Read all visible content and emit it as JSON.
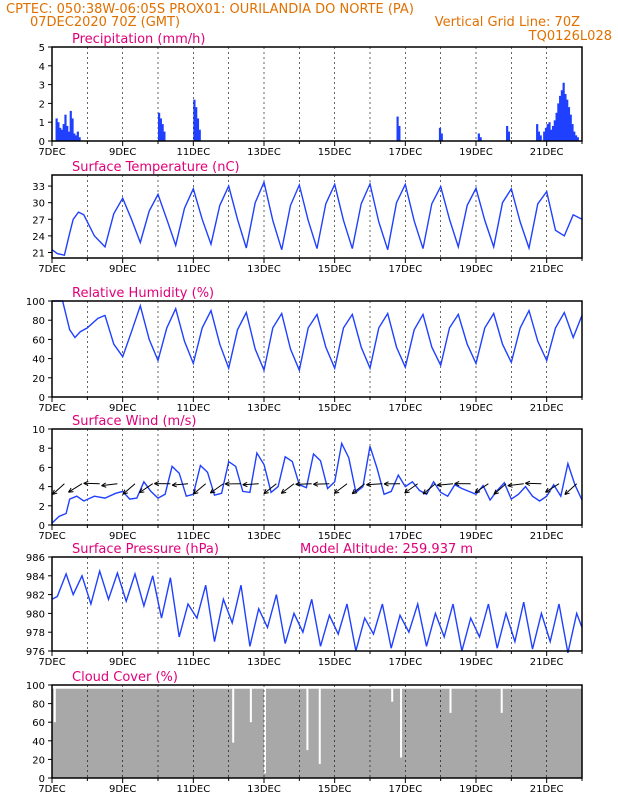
{
  "header": {
    "line1_left": "CPTEC:   050:38W-06:05S   PROX01: OURILANDIA DO NORTE (PA)",
    "line2_left": "07DEC2020 70Z (GMT)",
    "line2_right": "Vertical Grid Line: 70Z",
    "line3_right": "TQ0126L028"
  },
  "x_axis": {
    "tick_labels": [
      "7DEC",
      "9DEC",
      "11DEC",
      "13DEC",
      "15DEC",
      "17DEC",
      "19DEC",
      "21DEC"
    ],
    "year_label": "2020",
    "day_range": [
      0,
      15
    ]
  },
  "colors": {
    "header": "#e07000",
    "title": "#e0007a",
    "series": "#2040ff",
    "cloud": "#a8a8a8",
    "arrows": "#000000"
  },
  "chart_data": [
    {
      "type": "bar",
      "title": "Precipitation (mm/h)",
      "ylim": [
        0,
        5
      ],
      "yticks": [
        "0",
        "1",
        "2",
        "3",
        "4",
        "5"
      ],
      "x_days": [
        0.1,
        0.15,
        0.2,
        0.25,
        0.3,
        0.35,
        0.4,
        0.45,
        0.5,
        0.55,
        0.6,
        0.65,
        0.7,
        0.75,
        3.0,
        3.05,
        3.1,
        3.15,
        4.0,
        4.05,
        4.1,
        4.15,
        9.75,
        9.8,
        10.95,
        11.0,
        12.05,
        12.1,
        12.85,
        12.9,
        13.7,
        13.75,
        13.8,
        13.9,
        13.95,
        14.0,
        14.05,
        14.1,
        14.15,
        14.2,
        14.25,
        14.3,
        14.35,
        14.4,
        14.45,
        14.5,
        14.55,
        14.6,
        14.65,
        14.7,
        14.75,
        14.8,
        14.85
      ],
      "values": [
        1.2,
        1.0,
        0.7,
        0.6,
        0.9,
        1.4,
        0.8,
        0.5,
        1.6,
        1.2,
        0.4,
        0.3,
        0.5,
        0.2,
        1.5,
        1.2,
        0.9,
        0.5,
        2.2,
        1.8,
        1.2,
        0.6,
        1.3,
        0.8,
        0.7,
        0.4,
        0.4,
        0.2,
        0.8,
        0.5,
        0.9,
        0.5,
        0.3,
        0.5,
        0.7,
        0.9,
        1.0,
        0.6,
        0.8,
        1.1,
        1.5,
        2.0,
        2.4,
        2.7,
        3.1,
        2.5,
        2.2,
        1.8,
        1.4,
        0.9,
        0.5,
        0.3,
        0.2
      ]
    },
    {
      "type": "line",
      "title": "Surface Temperature (nC)",
      "ylim": [
        20,
        35
      ],
      "yticks": [
        "21",
        "24",
        "27",
        "30",
        "33"
      ],
      "x_days": [
        0,
        0.15,
        0.35,
        0.5,
        0.6,
        0.75,
        0.9,
        1.2,
        1.5,
        1.75,
        2.0,
        2.25,
        2.5,
        2.75,
        3.0,
        3.25,
        3.5,
        3.75,
        4.0,
        4.25,
        4.5,
        4.75,
        5.0,
        5.25,
        5.5,
        5.75,
        6.0,
        6.25,
        6.5,
        6.75,
        7.0,
        7.25,
        7.5,
        7.75,
        8.0,
        8.25,
        8.5,
        8.75,
        9.0,
        9.25,
        9.5,
        9.75,
        10.0,
        10.25,
        10.5,
        10.75,
        11.0,
        11.25,
        11.5,
        11.75,
        12.0,
        12.25,
        12.5,
        12.75,
        13.0,
        13.25,
        13.5,
        13.75,
        14.0,
        14.25,
        14.5,
        14.75,
        15.0
      ],
      "values": [
        21.5,
        20.8,
        20.5,
        24.5,
        27.0,
        28.3,
        27.8,
        24.0,
        22.0,
        28.0,
        30.8,
        27.0,
        22.8,
        28.5,
        31.5,
        27.0,
        22.3,
        29.0,
        32.5,
        27.0,
        22.5,
        29.5,
        33.0,
        27.0,
        21.8,
        30.0,
        33.7,
        26.8,
        21.5,
        29.5,
        33.2,
        26.8,
        21.7,
        29.8,
        33.3,
        26.8,
        21.7,
        29.8,
        33.4,
        26.5,
        21.5,
        30.0,
        33.3,
        26.7,
        21.7,
        29.8,
        32.9,
        27.0,
        22.0,
        29.5,
        32.6,
        26.8,
        22.0,
        30.0,
        32.5,
        26.5,
        21.8,
        29.8,
        32.0,
        25.0,
        24.0,
        27.8,
        27.0
      ]
    },
    {
      "type": "line",
      "title": "Relative Humidity (%)",
      "ylim": [
        0,
        100
      ],
      "yticks": [
        "0",
        "20",
        "40",
        "60",
        "80",
        "100"
      ],
      "x_days": [
        0,
        0.3,
        0.5,
        0.65,
        0.8,
        1.0,
        1.3,
        1.5,
        1.75,
        2.0,
        2.25,
        2.5,
        2.75,
        3.0,
        3.25,
        3.5,
        3.75,
        4.0,
        4.25,
        4.5,
        4.75,
        5.0,
        5.25,
        5.5,
        5.75,
        6.0,
        6.25,
        6.5,
        6.75,
        7.0,
        7.25,
        7.5,
        7.75,
        8.0,
        8.25,
        8.5,
        8.75,
        9.0,
        9.25,
        9.5,
        9.75,
        10.0,
        10.25,
        10.5,
        10.75,
        11.0,
        11.25,
        11.5,
        11.75,
        12.0,
        12.25,
        12.5,
        12.75,
        13.0,
        13.25,
        13.5,
        13.75,
        14.0,
        14.25,
        14.5,
        14.75,
        15.0
      ],
      "values": [
        100,
        100,
        70,
        62,
        68,
        72,
        82,
        85,
        55,
        42,
        68,
        95,
        60,
        38,
        72,
        92,
        58,
        35,
        72,
        90,
        55,
        30,
        70,
        88,
        50,
        28,
        72,
        87,
        50,
        28,
        72,
        86,
        52,
        30,
        72,
        86,
        52,
        30,
        72,
        87,
        52,
        31,
        70,
        86,
        52,
        33,
        72,
        86,
        55,
        35,
        72,
        87,
        55,
        36,
        72,
        90,
        58,
        38,
        72,
        88,
        62,
        85
      ]
    },
    {
      "type": "line",
      "title": "Surface Wind (m/s)",
      "ylim": [
        0,
        10
      ],
      "yticks": [
        "0",
        "2",
        "4",
        "6",
        "8",
        "10"
      ],
      "x_days": [
        0,
        0.2,
        0.4,
        0.5,
        0.7,
        0.9,
        1.2,
        1.5,
        1.8,
        2.0,
        2.2,
        2.4,
        2.6,
        2.8,
        3.0,
        3.2,
        3.4,
        3.6,
        3.8,
        4.0,
        4.2,
        4.4,
        4.6,
        4.8,
        5.0,
        5.2,
        5.4,
        5.6,
        5.8,
        6.0,
        6.2,
        6.4,
        6.6,
        6.8,
        7.0,
        7.2,
        7.4,
        7.6,
        7.8,
        8.0,
        8.2,
        8.4,
        8.6,
        8.8,
        9.0,
        9.2,
        9.4,
        9.6,
        9.8,
        10.0,
        10.2,
        10.4,
        10.6,
        10.8,
        11.0,
        11.2,
        11.4,
        11.6,
        11.8,
        12.0,
        12.2,
        12.4,
        12.6,
        12.8,
        13.0,
        13.2,
        13.4,
        13.6,
        13.8,
        14.0,
        14.2,
        14.4,
        14.6,
        14.8,
        15.0
      ],
      "values": [
        0.2,
        0.9,
        1.2,
        2.7,
        3.0,
        2.5,
        3.0,
        2.8,
        3.3,
        3.5,
        2.7,
        2.8,
        4.5,
        3.5,
        2.8,
        3.2,
        6.1,
        5.4,
        3.0,
        3.2,
        6.2,
        5.5,
        3.1,
        3.3,
        6.6,
        6.1,
        3.5,
        3.4,
        7.5,
        6.3,
        3.4,
        4.0,
        7.1,
        6.6,
        4.2,
        3.9,
        7.4,
        6.7,
        3.8,
        4.5,
        8.5,
        7.0,
        3.4,
        4.0,
        8.2,
        5.9,
        3.2,
        3.5,
        5.2,
        4.0,
        4.5,
        3.6,
        3.2,
        4.5,
        3.4,
        3.0,
        4.2,
        3.8,
        3.5,
        3.2,
        4.1,
        2.6,
        3.6,
        4.4,
        2.7,
        3.2,
        4.0,
        3.0,
        2.5,
        3.0,
        4.2,
        3.0,
        6.4,
        4.2,
        2.6
      ]
    },
    {
      "type": "line",
      "title": "Surface Pressure (hPa)",
      "annotation": "Model Altitude: 259.937 m",
      "ylim": [
        976,
        986
      ],
      "yticks": [
        "976",
        "978",
        "980",
        "982",
        "984",
        "986"
      ],
      "x_days": [
        0,
        0.15,
        0.4,
        0.6,
        0.85,
        1.1,
        1.35,
        1.6,
        1.85,
        2.1,
        2.35,
        2.6,
        2.85,
        3.1,
        3.35,
        3.6,
        3.85,
        4.1,
        4.35,
        4.6,
        4.85,
        5.1,
        5.35,
        5.6,
        5.85,
        6.1,
        6.35,
        6.6,
        6.85,
        7.1,
        7.35,
        7.6,
        7.85,
        8.1,
        8.35,
        8.6,
        8.85,
        9.1,
        9.35,
        9.6,
        9.85,
        10.1,
        10.35,
        10.6,
        10.85,
        11.1,
        11.35,
        11.6,
        11.85,
        12.1,
        12.35,
        12.6,
        12.85,
        13.1,
        13.35,
        13.6,
        13.85,
        14.1,
        14.35,
        14.6,
        14.85,
        15.0
      ],
      "values": [
        981.5,
        981.8,
        984.2,
        982.0,
        984.0,
        981.0,
        984.5,
        981.5,
        984.3,
        981.3,
        984.2,
        980.8,
        984.0,
        979.5,
        983.8,
        977.5,
        981.0,
        979.5,
        983.0,
        977.0,
        981.5,
        979.0,
        983.0,
        976.5,
        980.5,
        978.5,
        982.0,
        976.8,
        980.0,
        978.0,
        981.5,
        976.5,
        979.8,
        977.8,
        981.0,
        976.0,
        979.5,
        977.8,
        981.0,
        976.3,
        979.8,
        978.0,
        981.0,
        976.5,
        980.0,
        977.5,
        981.0,
        976.0,
        979.5,
        977.5,
        981.0,
        976.3,
        980.0,
        977.0,
        981.2,
        976.2,
        980.0,
        977.0,
        981.0,
        975.8,
        980.0,
        978.5
      ]
    },
    {
      "type": "bar",
      "title": "Cloud Cover (%)",
      "ylim": [
        0,
        100
      ],
      "yticks": [
        "0",
        "20",
        "40",
        "60",
        "80",
        "100"
      ],
      "dips_x_days": [
        0.05,
        5.1,
        5.6,
        6.0,
        7.2,
        7.55,
        9.6,
        9.85,
        11.25,
        12.7
      ],
      "dips_values": [
        60,
        38,
        60,
        5,
        30,
        15,
        82,
        22,
        70,
        70
      ]
    }
  ]
}
